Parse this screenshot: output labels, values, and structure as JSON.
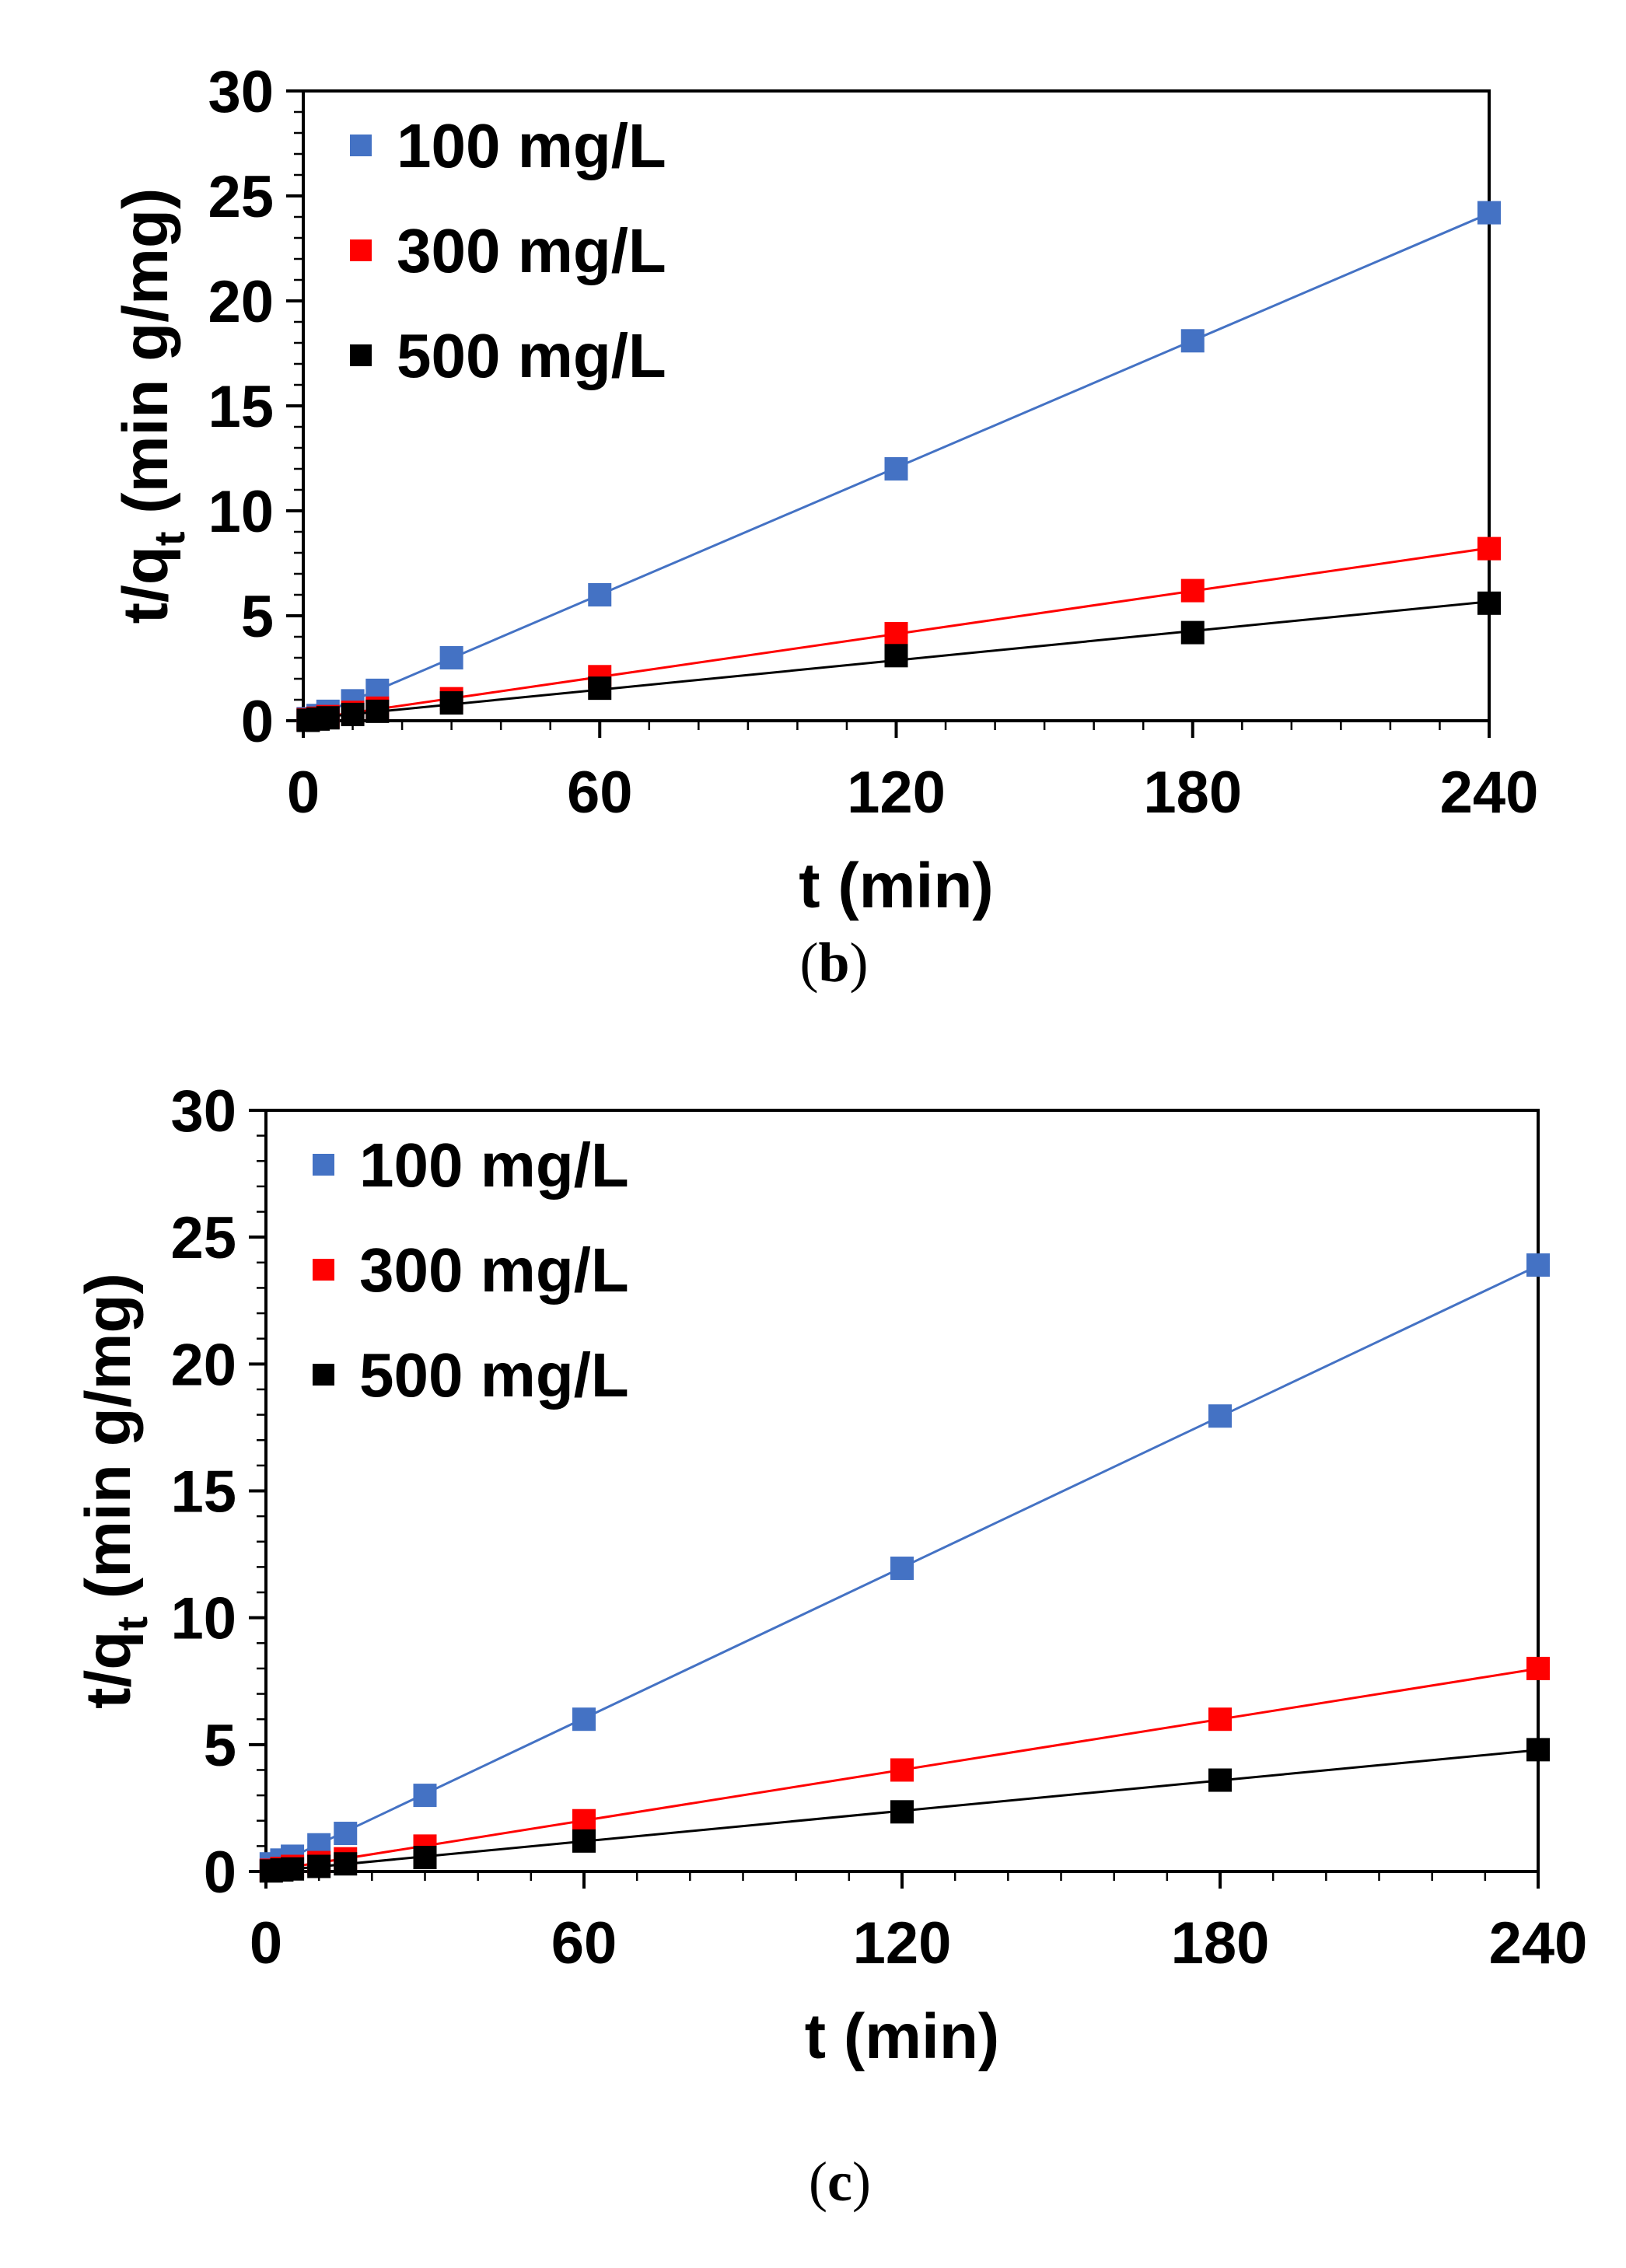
{
  "chart_data": [
    {
      "type": "scatter",
      "panel_label": "(b)",
      "panel_letter": "b",
      "xlabel": "t (min)",
      "ylabel_main": "t/q",
      "ylabel_sub": "t",
      "ylabel_rest": " (min g/mg)",
      "xlim": [
        0,
        240
      ],
      "ylim": [
        0,
        30
      ],
      "xticks": [
        0,
        60,
        120,
        180,
        240
      ],
      "yticks": [
        0,
        5,
        10,
        15,
        20,
        25,
        30
      ],
      "legend_position": "top-left",
      "series": [
        {
          "name": "100 mg/L",
          "color": "#4472C4",
          "x": [
            1,
            3,
            5,
            10,
            15,
            30,
            60,
            120,
            180,
            240
          ],
          "y": [
            0.1,
            0.25,
            0.45,
            0.95,
            1.45,
            3.0,
            6.0,
            12.0,
            18.1,
            24.2
          ]
        },
        {
          "name": "300 mg/L",
          "color": "#FF0000",
          "x": [
            1,
            3,
            5,
            10,
            15,
            30,
            60,
            120,
            180,
            240
          ],
          "y": [
            0.05,
            0.12,
            0.2,
            0.4,
            0.6,
            1.05,
            2.1,
            4.15,
            6.2,
            8.2
          ]
        },
        {
          "name": "500 mg/L",
          "color": "#000000",
          "x": [
            1,
            3,
            5,
            10,
            15,
            30,
            60,
            120,
            180,
            240
          ],
          "y": [
            0.02,
            0.08,
            0.14,
            0.3,
            0.45,
            0.85,
            1.55,
            3.1,
            4.2,
            5.6
          ]
        }
      ]
    },
    {
      "type": "scatter",
      "panel_label": "(c)",
      "panel_letter": "c",
      "xlabel": "t (min)",
      "ylabel_main": "t/q",
      "ylabel_sub": "t",
      "ylabel_rest": " (min g/mg)",
      "xlim": [
        0,
        240
      ],
      "ylim": [
        0,
        30
      ],
      "xticks": [
        0,
        60,
        120,
        180,
        240
      ],
      "yticks": [
        0,
        5,
        10,
        15,
        20,
        25,
        30
      ],
      "legend_position": "top-left",
      "series": [
        {
          "name": "100 mg/L",
          "color": "#4472C4",
          "x": [
            1,
            3,
            5,
            10,
            15,
            30,
            60,
            120,
            180,
            240
          ],
          "y": [
            0.3,
            0.45,
            0.6,
            1.05,
            1.5,
            3.0,
            6.0,
            11.95,
            17.95,
            23.9
          ]
        },
        {
          "name": "300 mg/L",
          "color": "#FF0000",
          "x": [
            1,
            3,
            5,
            10,
            15,
            30,
            60,
            120,
            180,
            240
          ],
          "y": [
            0.05,
            0.12,
            0.2,
            0.35,
            0.5,
            1.0,
            2.0,
            4.0,
            6.0,
            8.0
          ]
        },
        {
          "name": "500 mg/L",
          "color": "#000000",
          "x": [
            1,
            3,
            5,
            10,
            15,
            30,
            60,
            120,
            180,
            240
          ],
          "y": [
            0.02,
            0.06,
            0.1,
            0.2,
            0.3,
            0.55,
            1.2,
            2.35,
            3.6,
            4.8
          ]
        }
      ]
    }
  ]
}
